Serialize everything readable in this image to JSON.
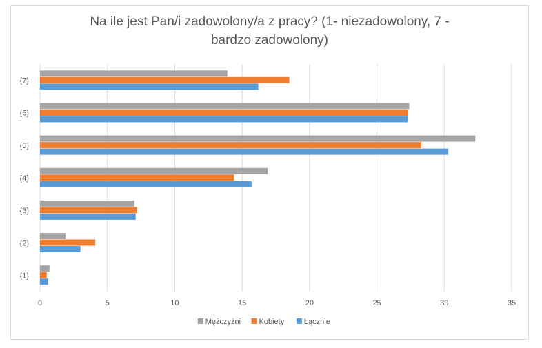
{
  "chart_data": {
    "type": "bar",
    "orientation": "horizontal",
    "title_line1": "Na ile jest Pan/i zadowolony/a z pracy? (1- niezadowolony, 7 -",
    "title_line2": "bardzo zadowolony)",
    "categories": [
      "{1}",
      "{2}",
      "{3}",
      "{4}",
      "{5}",
      "{6}",
      "{7}"
    ],
    "series": [
      {
        "name": "Mężczyźni",
        "color": "#a5a5a5",
        "values": [
          0.7,
          1.9,
          7.0,
          16.9,
          32.3,
          27.4,
          13.9
        ]
      },
      {
        "name": "Kobiety",
        "color": "#ed7d31",
        "values": [
          0.5,
          4.1,
          7.2,
          14.4,
          28.3,
          27.3,
          18.5
        ]
      },
      {
        "name": "Łącznie",
        "color": "#5b9bd5",
        "values": [
          0.6,
          3.0,
          7.1,
          15.7,
          30.3,
          27.3,
          16.2
        ]
      }
    ],
    "xlim": [
      0,
      35
    ],
    "xticks": [
      "0",
      "5",
      "10",
      "15",
      "20",
      "25",
      "30",
      "35"
    ],
    "grid": true,
    "legend_position": "bottom"
  }
}
